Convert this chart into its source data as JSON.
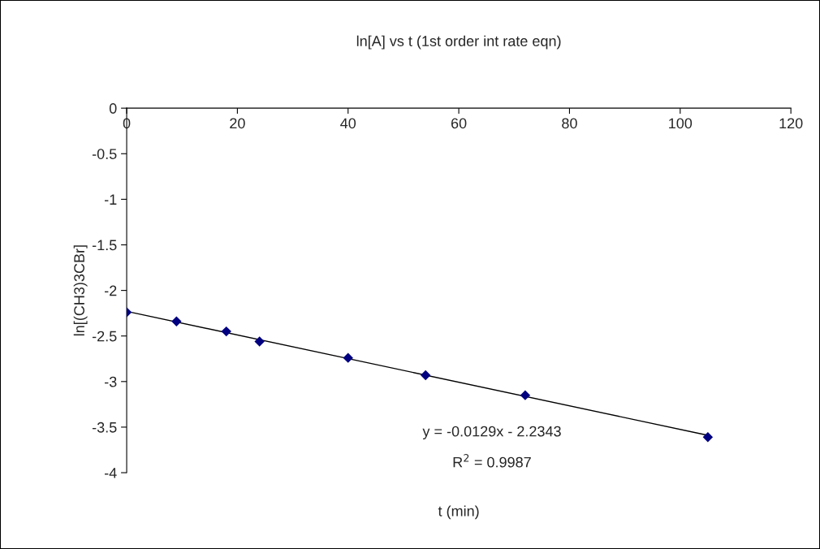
{
  "chart_data": {
    "type": "scatter",
    "title": "ln[A] vs t (1st order int rate eqn)",
    "xlabel": "t (min)",
    "ylabel": "ln[(CH3)3CBr]",
    "x": [
      0,
      9,
      18,
      24,
      40,
      54,
      72,
      105
    ],
    "series": [
      {
        "color": "#000080",
        "marker": "diamond",
        "values": [
          -2.24,
          -2.34,
          -2.45,
          -2.56,
          -2.74,
          -2.93,
          -3.15,
          -3.61
        ]
      },
      {
        "type": "line",
        "color": "#000000",
        "marker": "none",
        "x": [
          0,
          105
        ],
        "values": [
          -2.23,
          -3.59
        ]
      }
    ],
    "xlim": [
      0,
      120
    ],
    "xticks": [
      0,
      20,
      40,
      60,
      80,
      100,
      120
    ],
    "ylim": [
      -4,
      0
    ],
    "yticks": [
      -4,
      -3.5,
      -3,
      -2.5,
      -2,
      -1.5,
      -1,
      -0.5,
      0
    ],
    "grid": false,
    "legend": false,
    "annotations": [
      "y = -0.0129x - 2.2343",
      "R$^{2}$ = 0.9987"
    ]
  }
}
